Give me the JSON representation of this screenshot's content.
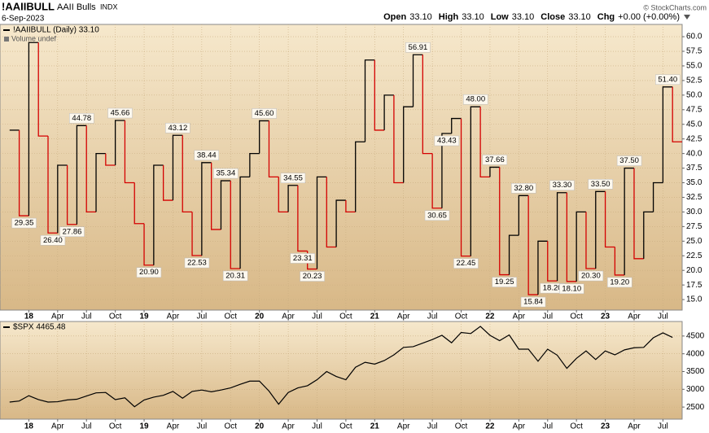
{
  "header": {
    "symbol": "!AAIIBULL",
    "name": "AAII Bulls",
    "exchange": "INDX",
    "date": "6-Sep-2023",
    "quote": [
      {
        "label": "Open",
        "value": "33.10"
      },
      {
        "label": "High",
        "value": "33.10"
      },
      {
        "label": "Low",
        "value": "33.10"
      },
      {
        "label": "Close",
        "value": "33.10"
      },
      {
        "label": "Chg",
        "value": "+0.00 (+0.00%)"
      }
    ],
    "credit": "© StockCharts.com"
  },
  "chart_data": [
    {
      "type": "step",
      "note": "Volume undef",
      "grid": true,
      "x": [
        "2017-11",
        "2017-12",
        "2018-01",
        "2018-02",
        "2018-03",
        "2018-04",
        "2018-05",
        "2018-06",
        "2018-07",
        "2018-08",
        "2018-09",
        "2018-10",
        "2018-11",
        "2018-12",
        "2019-01",
        "2019-02",
        "2019-03",
        "2019-04",
        "2019-05",
        "2019-06",
        "2019-07",
        "2019-08",
        "2019-09",
        "2019-10",
        "2019-11",
        "2019-12",
        "2020-01",
        "2020-02",
        "2020-03",
        "2020-04",
        "2020-05",
        "2020-06",
        "2020-07",
        "2020-08",
        "2020-09",
        "2020-10",
        "2020-11",
        "2020-12",
        "2021-01",
        "2021-02",
        "2021-03",
        "2021-04",
        "2021-05",
        "2021-06",
        "2021-07",
        "2021-08",
        "2021-09",
        "2021-10",
        "2021-11",
        "2021-12",
        "2022-01",
        "2022-02",
        "2022-03",
        "2022-04",
        "2022-05",
        "2022-06",
        "2022-07",
        "2022-08",
        "2022-09",
        "2022-10",
        "2022-11",
        "2022-12",
        "2023-01",
        "2023-02",
        "2023-03",
        "2023-04",
        "2023-05",
        "2023-06",
        "2023-07",
        "2023-08"
      ],
      "series": [
        {
          "name": "!AAIIBULL (Daily) 33.10",
          "color": "#000000",
          "down_color": "#d40000",
          "values": [
            44,
            29.35,
            59,
            43,
            26.4,
            38,
            27.86,
            44.78,
            30,
            40,
            38,
            45.66,
            35,
            28,
            20.9,
            38,
            32,
            43.12,
            30,
            22.53,
            38.44,
            27,
            35.34,
            20.31,
            36,
            40,
            45.6,
            36,
            30,
            34.55,
            23.31,
            20.23,
            36,
            24,
            32,
            30,
            42,
            56,
            44,
            50,
            35,
            48,
            56.91,
            40,
            30.65,
            43.43,
            46,
            22.45,
            48,
            36,
            37.66,
            19.25,
            26,
            32.8,
            15.84,
            25,
            18.2,
            33.3,
            18.1,
            30,
            20.3,
            33.5,
            24,
            19.2,
            37.5,
            22,
            30,
            35,
            51.4,
            42
          ],
          "value_labels": [
            null,
            "29.35",
            null,
            null,
            "26.40",
            null,
            "27.86",
            "44.78",
            null,
            null,
            null,
            "45.66",
            null,
            null,
            "20.90",
            null,
            null,
            "43.12",
            null,
            "22.53",
            "38.44",
            null,
            "35.34",
            "20.31",
            null,
            null,
            "45.60",
            null,
            null,
            "34.55",
            "23.31",
            "20.23",
            null,
            null,
            null,
            null,
            null,
            null,
            null,
            null,
            null,
            null,
            "56.91",
            null,
            "30.65",
            "43.43",
            null,
            "22.45",
            "48.00",
            null,
            "37.66",
            "19.25",
            null,
            "32.80",
            "15.84",
            null,
            "18.20",
            "33.30",
            "18.10",
            null,
            "20.30",
            "33.50",
            null,
            "19.20",
            "37.50",
            null,
            null,
            null,
            "51.40",
            null
          ]
        }
      ],
      "xlim": [
        "2017-10",
        "2023-09"
      ],
      "xticks": [
        {
          "value": "2018-01",
          "label": "18"
        },
        {
          "value": "2018-04",
          "label": "Apr"
        },
        {
          "value": "2018-07",
          "label": "Jul"
        },
        {
          "value": "2018-10",
          "label": "Oct"
        },
        {
          "value": "2019-01",
          "label": "19"
        },
        {
          "value": "2019-04",
          "label": "Apr"
        },
        {
          "value": "2019-07",
          "label": "Jul"
        },
        {
          "value": "2019-10",
          "label": "Oct"
        },
        {
          "value": "2020-01",
          "label": "20"
        },
        {
          "value": "2020-04",
          "label": "Apr"
        },
        {
          "value": "2020-07",
          "label": "Jul"
        },
        {
          "value": "2020-10",
          "label": "Oct"
        },
        {
          "value": "2021-01",
          "label": "21"
        },
        {
          "value": "2021-04",
          "label": "Apr"
        },
        {
          "value": "2021-07",
          "label": "Jul"
        },
        {
          "value": "2021-10",
          "label": "Oct"
        },
        {
          "value": "2022-01",
          "label": "22"
        },
        {
          "value": "2022-04",
          "label": "Apr"
        },
        {
          "value": "2022-07",
          "label": "Jul"
        },
        {
          "value": "2022-10",
          "label": "Oct"
        },
        {
          "value": "2023-01",
          "label": "23"
        },
        {
          "value": "2023-04",
          "label": "Apr"
        },
        {
          "value": "2023-07",
          "label": "Jul"
        }
      ],
      "ylim": [
        13.2,
        62.1
      ],
      "yticks": [
        {
          "value": 15,
          "label": "15.0"
        },
        17.5,
        {
          "value": 20,
          "label": "20.0"
        },
        22.5,
        {
          "value": 25,
          "label": "25.0"
        },
        27.5,
        {
          "value": 30,
          "label": "30.0"
        },
        32.5,
        {
          "value": 35,
          "label": "35.0"
        },
        37.5,
        {
          "value": 40,
          "label": "40.0"
        },
        42.5,
        {
          "value": 45,
          "label": "45.0"
        },
        47.5,
        {
          "value": 50,
          "label": "50.0"
        },
        52.5,
        {
          "value": 55,
          "label": "55.0"
        },
        57.5,
        {
          "value": 60,
          "label": "60.0"
        }
      ]
    },
    {
      "type": "line",
      "grid": true,
      "x": [
        "2017-11",
        "2017-12",
        "2018-01",
        "2018-02",
        "2018-03",
        "2018-04",
        "2018-05",
        "2018-06",
        "2018-07",
        "2018-08",
        "2018-09",
        "2018-10",
        "2018-11",
        "2018-12",
        "2019-01",
        "2019-02",
        "2019-03",
        "2019-04",
        "2019-05",
        "2019-06",
        "2019-07",
        "2019-08",
        "2019-09",
        "2019-10",
        "2019-11",
        "2019-12",
        "2020-01",
        "2020-02",
        "2020-03",
        "2020-04",
        "2020-05",
        "2020-06",
        "2020-07",
        "2020-08",
        "2020-09",
        "2020-10",
        "2020-11",
        "2020-12",
        "2021-01",
        "2021-02",
        "2021-03",
        "2021-04",
        "2021-05",
        "2021-06",
        "2021-07",
        "2021-08",
        "2021-09",
        "2021-10",
        "2021-11",
        "2021-12",
        "2022-01",
        "2022-02",
        "2022-03",
        "2022-04",
        "2022-05",
        "2022-06",
        "2022-07",
        "2022-08",
        "2022-09",
        "2022-10",
        "2022-11",
        "2022-12",
        "2023-01",
        "2023-02",
        "2023-03",
        "2023-04",
        "2023-05",
        "2023-06",
        "2023-07",
        "2023-08"
      ],
      "series": [
        {
          "name": "$SPX 4465.48",
          "color": "#000000",
          "values": [
            2640,
            2670,
            2820,
            2710,
            2640,
            2650,
            2700,
            2720,
            2810,
            2900,
            2910,
            2710,
            2760,
            2510,
            2700,
            2780,
            2830,
            2940,
            2750,
            2940,
            2980,
            2930,
            2980,
            3040,
            3140,
            3230,
            3230,
            2950,
            2580,
            2910,
            3040,
            3100,
            3270,
            3500,
            3360,
            3270,
            3620,
            3760,
            3710,
            3810,
            3970,
            4180,
            4200,
            4300,
            4400,
            4520,
            4310,
            4600,
            4570,
            4770,
            4520,
            4370,
            4530,
            4130,
            4130,
            3790,
            4130,
            3960,
            3590,
            3870,
            4080,
            3840,
            4080,
            3970,
            4110,
            4170,
            4180,
            4450,
            4590,
            4460
          ]
        }
      ],
      "xlim": [
        "2017-10",
        "2023-09"
      ],
      "xticks": [
        {
          "value": "2018-01",
          "label": "18"
        },
        {
          "value": "2018-04",
          "label": "Apr"
        },
        {
          "value": "2018-07",
          "label": "Jul"
        },
        {
          "value": "2018-10",
          "label": "Oct"
        },
        {
          "value": "2019-01",
          "label": "19"
        },
        {
          "value": "2019-04",
          "label": "Apr"
        },
        {
          "value": "2019-07",
          "label": "Jul"
        },
        {
          "value": "2019-10",
          "label": "Oct"
        },
        {
          "value": "2020-01",
          "label": "20"
        },
        {
          "value": "2020-04",
          "label": "Apr"
        },
        {
          "value": "2020-07",
          "label": "Jul"
        },
        {
          "value": "2020-10",
          "label": "Oct"
        },
        {
          "value": "2021-01",
          "label": "21"
        },
        {
          "value": "2021-04",
          "label": "Apr"
        },
        {
          "value": "2021-07",
          "label": "Jul"
        },
        {
          "value": "2021-10",
          "label": "Oct"
        },
        {
          "value": "2022-01",
          "label": "22"
        },
        {
          "value": "2022-04",
          "label": "Apr"
        },
        {
          "value": "2022-07",
          "label": "Jul"
        },
        {
          "value": "2022-10",
          "label": "Oct"
        },
        {
          "value": "2023-01",
          "label": "23"
        },
        {
          "value": "2023-04",
          "label": "Apr"
        },
        {
          "value": "2023-07",
          "label": "Jul"
        }
      ],
      "ylim": [
        2159,
        4909
      ],
      "yticks": [
        2500,
        3000,
        3500,
        4000,
        4500
      ]
    }
  ]
}
